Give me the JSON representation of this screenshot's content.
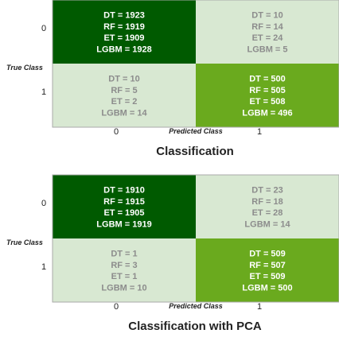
{
  "chart_data": [
    {
      "type": "heatmap",
      "title": "Classification",
      "xlabel": "Predicted Class",
      "ylabel": "True Class",
      "x_ticks": [
        "0",
        "1"
      ],
      "y_ticks": [
        "0",
        "1"
      ],
      "colors": {
        "dark": "#005a00",
        "medium": "#6aaa1e",
        "light": "#d8e8d2",
        "text_dark_cell": "#ffffff",
        "text_light_cell": "#8c8c8c"
      },
      "cells": [
        {
          "row": 0,
          "col": 0,
          "shade": "dark",
          "lines": [
            "DT = 1923",
            "RF = 1919",
            "ET = 1909",
            "LGBM = 1928"
          ]
        },
        {
          "row": 0,
          "col": 1,
          "shade": "light",
          "lines": [
            "DT = 10",
            "RF = 14",
            "ET = 24",
            "LGBM = 5"
          ]
        },
        {
          "row": 1,
          "col": 0,
          "shade": "light",
          "lines": [
            "DT = 10",
            "RF = 5",
            "ET = 2",
            "LGBM = 14"
          ]
        },
        {
          "row": 1,
          "col": 1,
          "shade": "medium",
          "lines": [
            "DT = 500",
            "RF = 505",
            "ET = 508",
            "LGBM = 496"
          ]
        }
      ]
    },
    {
      "type": "heatmap",
      "title": "Classification with PCA",
      "xlabel": "Predicted Class",
      "ylabel": "True Class",
      "x_ticks": [
        "0",
        "1"
      ],
      "y_ticks": [
        "0",
        "1"
      ],
      "colors": {
        "dark": "#005a00",
        "medium": "#6aaa1e",
        "light": "#d8e8d2",
        "text_dark_cell": "#ffffff",
        "text_light_cell": "#8c8c8c"
      },
      "cells": [
        {
          "row": 0,
          "col": 0,
          "shade": "dark",
          "lines": [
            "DT = 1910",
            "RF = 1915",
            "ET = 1905",
            "LGBM = 1919"
          ]
        },
        {
          "row": 0,
          "col": 1,
          "shade": "light",
          "lines": [
            "DT = 23",
            "RF = 18",
            "ET = 28",
            "LGBM = 14"
          ]
        },
        {
          "row": 1,
          "col": 0,
          "shade": "light",
          "lines": [
            "DT = 1",
            "RF = 3",
            "ET = 1",
            "LGBM =  10"
          ]
        },
        {
          "row": 1,
          "col": 1,
          "shade": "medium",
          "lines": [
            "DT = 509",
            "RF = 507",
            "ET = 509",
            "LGBM = 500"
          ]
        }
      ]
    }
  ]
}
